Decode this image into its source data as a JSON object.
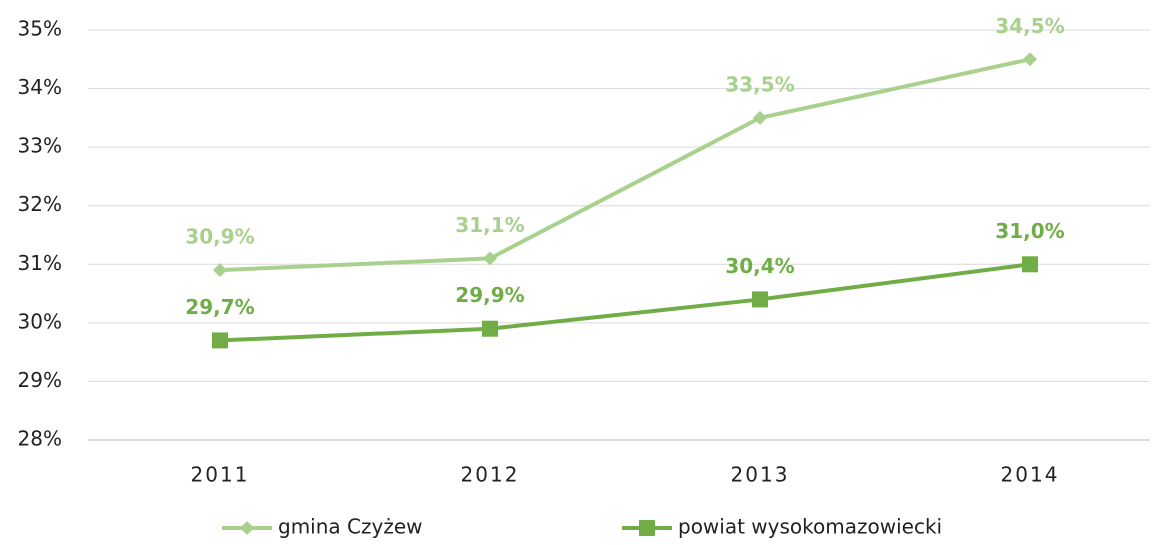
{
  "chart_data": {
    "type": "line",
    "categories": [
      "2011",
      "2012",
      "2013",
      "2014"
    ],
    "series": [
      {
        "name": "gmina Czyżew",
        "color": "#a9d18e",
        "marker": "diamond",
        "values": [
          30.9,
          31.1,
          33.5,
          34.5
        ],
        "value_labels": [
          "30,9%",
          "31,1%",
          "33,5%",
          "34,5%"
        ]
      },
      {
        "name": "powiat wysokomazowiecki",
        "color": "#70ad47",
        "marker": "square",
        "values": [
          29.7,
          29.9,
          30.4,
          31.0
        ],
        "value_labels": [
          "29,7%",
          "29,9%",
          "30,4%",
          "31,0%"
        ]
      }
    ],
    "ylim": [
      28,
      35
    ],
    "yticks": [
      {
        "value": 28,
        "label": "28%"
      },
      {
        "value": 29,
        "label": "29%"
      },
      {
        "value": 30,
        "label": "30%"
      },
      {
        "value": 31,
        "label": "31%"
      },
      {
        "value": 32,
        "label": "32%"
      },
      {
        "value": 33,
        "label": "33%"
      },
      {
        "value": 34,
        "label": "34%"
      },
      {
        "value": 35,
        "label": "35%"
      }
    ],
    "grid": true,
    "legend": "bottom"
  }
}
